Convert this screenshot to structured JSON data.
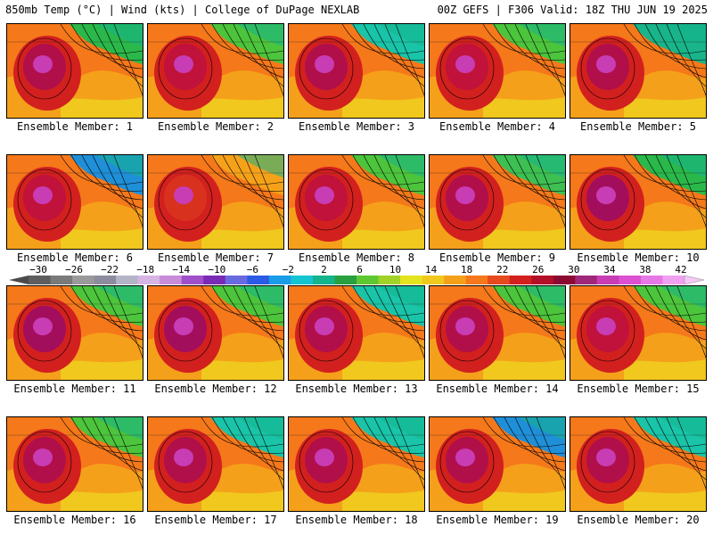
{
  "header": {
    "left": "850mb Temp (°C) | Wind (kts) | College of DuPage NEXLAB",
    "right": "00Z GEFS | F306 Valid: 18Z THU JUN 19 2025"
  },
  "panel_label_prefix": "Ensemble Member: ",
  "members": [
    {
      "label": "Ensemble Member: 1",
      "cool": "#2ab84a",
      "hot": "#b10f4a"
    },
    {
      "label": "Ensemble Member: 2",
      "cool": "#4cc43c",
      "hot": "#c0123a"
    },
    {
      "label": "Ensemble Member: 3",
      "cool": "#19c4a8",
      "hot": "#b10f4a"
    },
    {
      "label": "Ensemble Member: 4",
      "cool": "#4cc43c",
      "hot": "#c0123a"
    },
    {
      "label": "Ensemble Member: 5",
      "cool": "#19b48a",
      "hot": "#b10f4a"
    },
    {
      "label": "Ensemble Member: 6",
      "cool": "#1f8fd8",
      "hot": "#c0123a"
    },
    {
      "label": "Ensemble Member: 7",
      "cool": "#f5a21a",
      "hot": "#d8321e"
    },
    {
      "label": "Ensemble Member: 8",
      "cool": "#4cc43c",
      "hot": "#c0123a"
    },
    {
      "label": "Ensemble Member: 9",
      "cool": "#3dbf52",
      "hot": "#b10f4a"
    },
    {
      "label": "Ensemble Member: 10",
      "cool": "#2ab84a",
      "hot": "#a30e5c"
    },
    {
      "label": "Ensemble Member: 11",
      "cool": "#4cc43c",
      "hot": "#a30e5c"
    },
    {
      "label": "Ensemble Member: 12",
      "cool": "#4cc43c",
      "hot": "#a30e5c"
    },
    {
      "label": "Ensemble Member: 13",
      "cool": "#19c4a8",
      "hot": "#b10f4a"
    },
    {
      "label": "Ensemble Member: 14",
      "cool": "#4cc43c",
      "hot": "#b10f4a"
    },
    {
      "label": "Ensemble Member: 15",
      "cool": "#4cc43c",
      "hot": "#c0123a"
    },
    {
      "label": "Ensemble Member: 16",
      "cool": "#4cc43c",
      "hot": "#b10f4a"
    },
    {
      "label": "Ensemble Member: 17",
      "cool": "#19c4a8",
      "hot": "#b10f4a"
    },
    {
      "label": "Ensemble Member: 18",
      "cool": "#19c4a8",
      "hot": "#b10f4a"
    },
    {
      "label": "Ensemble Member: 19",
      "cool": "#1f8fd8",
      "hot": "#b10f4a"
    },
    {
      "label": "Ensemble Member: 20",
      "cool": "#19c4a8",
      "hot": "#b10f4a"
    }
  ],
  "colorbar": {
    "ticks": [
      "−30",
      "−26",
      "−22",
      "−18",
      "−14",
      "−10",
      "−6",
      "−2",
      "2",
      "6",
      "10",
      "14",
      "18",
      "22",
      "26",
      "30",
      "34",
      "38",
      "42"
    ],
    "colors": [
      "#5e5e5e",
      "#7a7a7a",
      "#9a9a9a",
      "#8c8c9e",
      "#b4b4c8",
      "#d6b4e4",
      "#c88cd8",
      "#a050c8",
      "#7a2ab4",
      "#6a6ae0",
      "#2a5ae6",
      "#1a9ce8",
      "#14c4d0",
      "#14b48c",
      "#28a040",
      "#5ec832",
      "#a0d228",
      "#e4e41e",
      "#f0c81e",
      "#f5a01a",
      "#f5781a",
      "#e64a1e",
      "#d2201e",
      "#b40f28",
      "#8c0a32",
      "#a0287a",
      "#c83cb4",
      "#dc50d2",
      "#e678e6",
      "#f0a0f0"
    ]
  }
}
